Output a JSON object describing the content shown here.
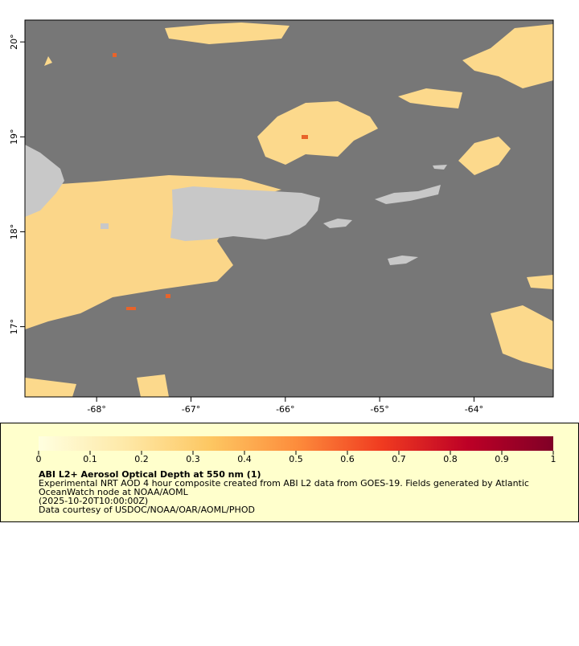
{
  "map": {
    "xlim": [
      -68.76,
      -63.16
    ],
    "ylim": [
      16.26,
      20.23
    ],
    "xticks": [
      {
        "value": -68,
        "label": "-68°"
      },
      {
        "value": -67,
        "label": "-67°"
      },
      {
        "value": -66,
        "label": "-66°"
      },
      {
        "value": -65,
        "label": "-65°"
      },
      {
        "value": -64,
        "label": "-64°"
      }
    ],
    "yticks": [
      {
        "value": 17,
        "label": "17°"
      },
      {
        "value": 18,
        "label": "18°"
      },
      {
        "value": 19,
        "label": "19°"
      },
      {
        "value": 20,
        "label": "20°"
      }
    ]
  },
  "colorbar": {
    "range": [
      0,
      1
    ],
    "ticks": [
      0,
      0.1,
      0.2,
      0.3,
      0.4,
      0.5,
      0.6,
      0.7,
      0.8,
      0.9,
      1
    ],
    "colors": [
      "#ffffe0",
      "#fee9a8",
      "#fdc762",
      "#fd8d3c",
      "#f03b20",
      "#bd0026",
      "#800026"
    ]
  },
  "legend": {
    "title": "ABI L2+ Aerosol Optical Depth at 550 nm (1)",
    "lines": [
      "Experimental NRT AOD 4 hour composite created from ABI L2 data from GOES-19. Fields generated by Atlantic",
      "OceanWatch node at NOAA/AOML",
      "(2025-10-20T10:00:00Z)",
      "Data courtesy of USDOC/NOAA/OAR/AOML/PHOD"
    ]
  }
}
